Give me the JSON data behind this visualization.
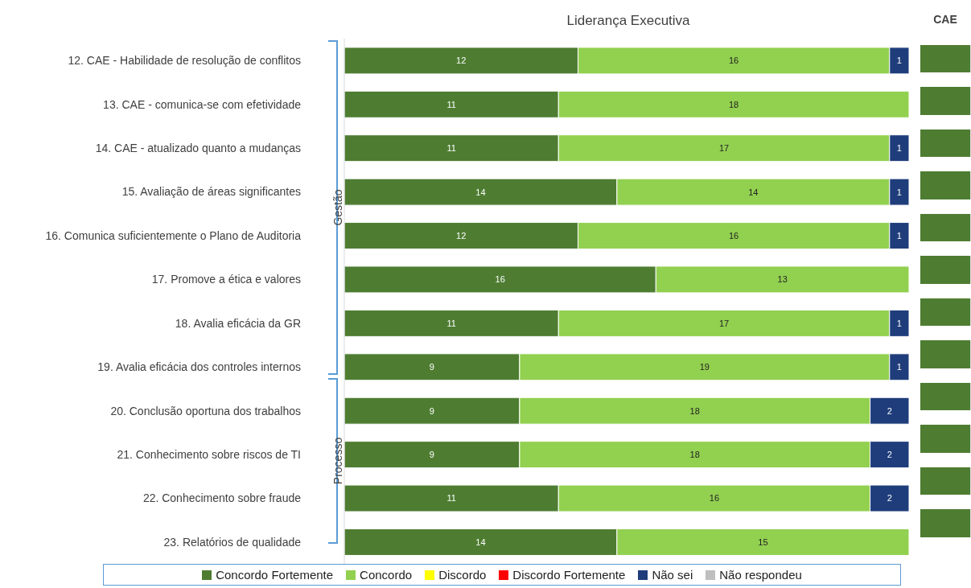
{
  "chart_data": {
    "type": "bar",
    "orientation": "horizontal",
    "stacked": true,
    "title": "Liderança Executiva",
    "data_labels": true,
    "legend": "bottom",
    "categories": [
      "12. CAE - Habilidade de resolução de conflitos",
      "13. CAE - comunica-se com efetividade",
      "14. CAE - atualizado quanto a mudanças",
      "15. Avaliação de áreas significantes",
      "16. Comunica suficientemente o Plano de Auditoria",
      "17. Promove a ética e valores",
      "18. Avalia eficácia da GR",
      "19. Avalia eficácia dos controles internos",
      "20. Conclusão oportuna dos trabalhos",
      "21. Conhecimento sobre riscos de TI",
      "22. Conhecimento sobre fraude",
      "23. Relatórios de qualidade"
    ],
    "series": [
      {
        "name": "Concordo Fortemente",
        "color": "#4e7d32",
        "values": [
          12,
          11,
          11,
          14,
          12,
          16,
          11,
          9,
          9,
          9,
          11,
          14
        ]
      },
      {
        "name": "Concordo",
        "color": "#92d050",
        "values": [
          16,
          18,
          17,
          14,
          16,
          13,
          17,
          19,
          18,
          18,
          16,
          15
        ]
      },
      {
        "name": "Discordo",
        "color": "#ffff00",
        "values": [
          null,
          null,
          null,
          null,
          null,
          null,
          null,
          null,
          null,
          null,
          null,
          null
        ]
      },
      {
        "name": "Discordo Fortemente",
        "color": "#ff0000",
        "values": [
          null,
          null,
          null,
          null,
          null,
          null,
          null,
          null,
          null,
          null,
          null,
          null
        ]
      },
      {
        "name": "Não sei",
        "color": "#1f3d7a",
        "values": [
          1,
          null,
          1,
          1,
          1,
          null,
          1,
          1,
          2,
          2,
          2,
          null
        ]
      },
      {
        "name": "Não respondeu",
        "color": "#bfbfbf",
        "values": [
          null,
          null,
          null,
          null,
          null,
          null,
          null,
          null,
          null,
          null,
          null,
          null
        ]
      }
    ],
    "annotations": [
      "Gestão",
      "Processo",
      "CAE"
    ]
  }
}
